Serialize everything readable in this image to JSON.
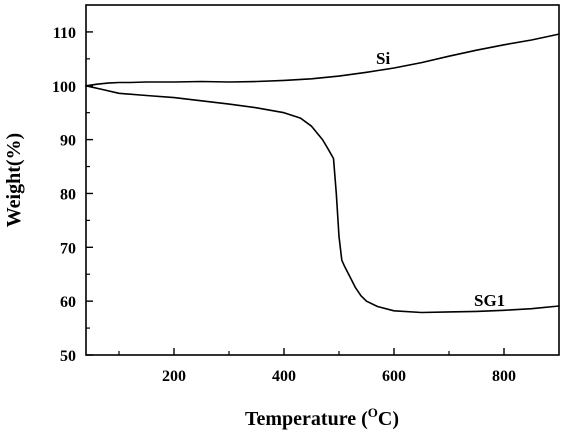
{
  "chart_data": {
    "type": "line",
    "title": "",
    "xlabel": "Temperature (",
    "xlabel_super": "O",
    "xlabel_unit": "C)",
    "ylabel": "Weight(%)",
    "xlim": [
      40,
      900
    ],
    "ylim": [
      50,
      115
    ],
    "x_ticks": [
      200,
      400,
      600,
      800
    ],
    "y_ticks": [
      50,
      60,
      70,
      80,
      90,
      100,
      110
    ],
    "grid": false,
    "series": [
      {
        "name": "Si",
        "x": [
          40,
          60,
          80,
          100,
          120,
          150,
          200,
          250,
          300,
          350,
          400,
          450,
          500,
          550,
          600,
          650,
          700,
          750,
          800,
          850,
          900
        ],
        "y": [
          100.0,
          100.3,
          100.5,
          100.6,
          100.6,
          100.7,
          100.7,
          100.8,
          100.7,
          100.8,
          101.0,
          101.3,
          101.8,
          102.5,
          103.3,
          104.3,
          105.5,
          106.6,
          107.6,
          108.5,
          109.6
        ]
      },
      {
        "name": "SG1",
        "x": [
          40,
          70,
          100,
          150,
          200,
          250,
          300,
          350,
          400,
          430,
          450,
          470,
          480,
          490,
          495,
          500,
          505,
          510,
          520,
          530,
          540,
          550,
          570,
          600,
          650,
          700,
          750,
          800,
          850,
          900
        ],
        "y": [
          100.0,
          99.3,
          98.6,
          98.2,
          97.8,
          97.2,
          96.6,
          95.9,
          95.0,
          94.0,
          92.5,
          90.0,
          88.3,
          86.5,
          80.0,
          72.0,
          67.6,
          66.5,
          64.5,
          62.5,
          61.0,
          60.0,
          59.0,
          58.2,
          57.9,
          58.0,
          58.1,
          58.3,
          58.6,
          59.1
        ]
      }
    ]
  }
}
